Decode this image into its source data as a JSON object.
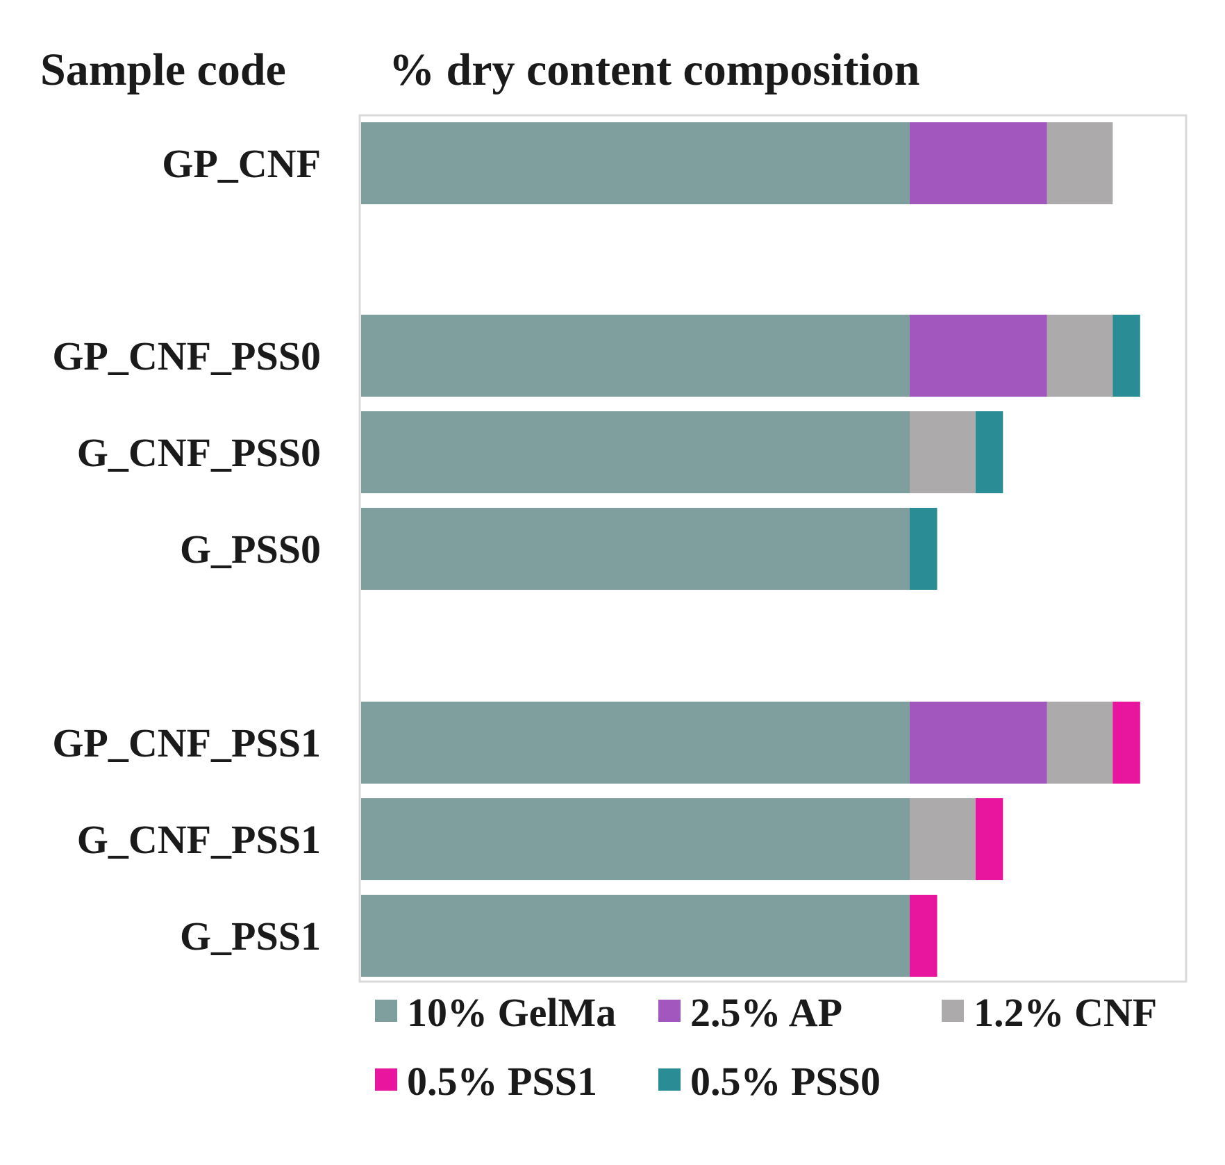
{
  "headers": {
    "sample_code": "Sample code",
    "composition": "% dry content composition"
  },
  "chart_data": {
    "type": "bar",
    "orientation": "horizontal",
    "stacked": true,
    "title": "% dry content composition",
    "ylabel": "Sample code",
    "xlabel": "",
    "xlim": [
      0,
      15
    ],
    "grid": false,
    "legend_position": "bottom",
    "categories": [
      "GP_CNF",
      "GP_CNF_PSS0",
      "G_CNF_PSS0",
      "G_PSS0",
      "GP_CNF_PSS1",
      "G_CNF_PSS1",
      "G_PSS1"
    ],
    "series": [
      {
        "name": "10% GelMa",
        "color": "#7e9f9d",
        "values": [
          10,
          10,
          10,
          10,
          10,
          10,
          10
        ]
      },
      {
        "name": "2.5% AP",
        "color": "#a257be",
        "values": [
          2.5,
          2.5,
          0,
          0,
          2.5,
          0,
          0
        ]
      },
      {
        "name": "1.2% CNF",
        "color": "#acaaaa",
        "values": [
          1.2,
          1.2,
          1.2,
          0,
          1.2,
          1.2,
          0
        ]
      },
      {
        "name": "0.5% PSS1",
        "color": "#e8169e",
        "values": [
          0,
          0,
          0,
          0,
          0.5,
          0.5,
          0.5
        ]
      },
      {
        "name": "0.5% PSS0",
        "color": "#2a8c95",
        "values": [
          0,
          0.5,
          0.5,
          0.5,
          0,
          0,
          0
        ]
      }
    ]
  }
}
